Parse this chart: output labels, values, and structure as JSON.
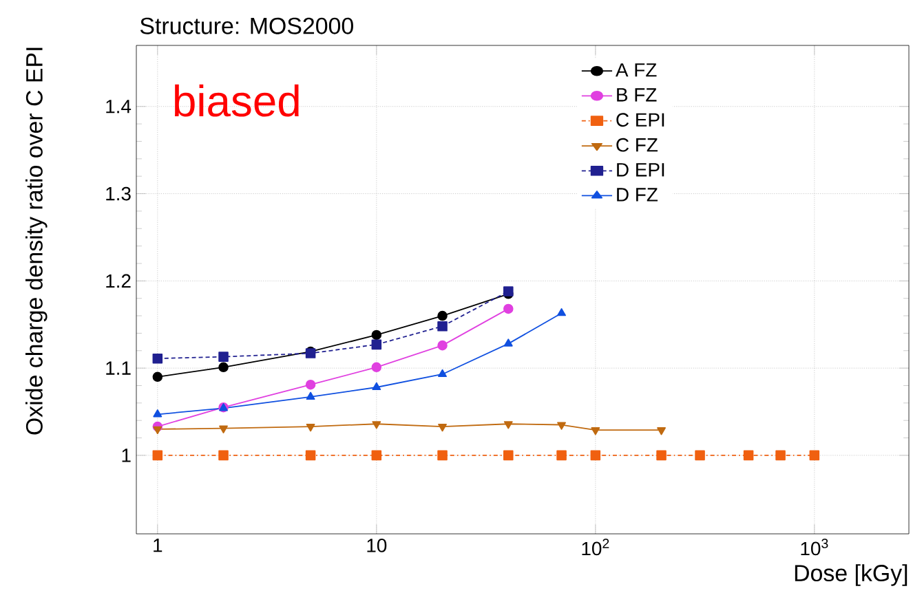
{
  "chart_data": {
    "type": "line",
    "title": "Structure: MOS2000",
    "xlabel": "Dose [kGy]",
    "ylabel": "Oxide charge density ratio over C EPI",
    "annotations": [
      "biased"
    ],
    "log": "x",
    "grid": true,
    "legend": "top right",
    "xlim": [
      0.8,
      2700
    ],
    "xticks": [
      1,
      10,
      {
        "value": 100,
        "label": "10$^{2}$"
      },
      {
        "value": 1000,
        "label": "10$^{3}$"
      }
    ],
    "ylim": [
      0.91,
      1.47
    ],
    "yticks": [
      1,
      1.1,
      1.2,
      1.3,
      1.4
    ],
    "series": [
      {
        "name": "A FZ",
        "color": "#000000",
        "marker": "circle",
        "line_style": "solid",
        "x": [
          1,
          2,
          5,
          10,
          20,
          40
        ],
        "values": [
          1.09,
          1.101,
          1.119,
          1.138,
          1.16,
          1.185
        ]
      },
      {
        "name": "B FZ",
        "color": "#e040e0",
        "marker": "circle",
        "line_style": "solid",
        "x": [
          1,
          2,
          5,
          10,
          20,
          40
        ],
        "values": [
          1.033,
          1.055,
          1.081,
          1.101,
          1.126,
          1.168
        ]
      },
      {
        "name": "C EPI",
        "color": "#f06010",
        "marker": "square",
        "line_style": "dashed",
        "x": [
          1,
          2,
          5,
          10,
          20,
          40,
          70,
          100,
          200,
          300,
          500,
          700,
          1000
        ],
        "values": [
          1,
          1,
          1,
          1,
          1,
          1,
          1,
          1,
          1,
          1,
          1,
          1,
          1
        ]
      },
      {
        "name": "C FZ",
        "color": "#c06a10",
        "marker": "triangle",
        "line_style": "solid",
        "x": [
          1,
          2,
          5,
          10,
          20,
          40,
          70,
          100,
          200
        ],
        "values": [
          1.03,
          1.031,
          1.033,
          1.036,
          1.033,
          1.036,
          1.035,
          1.029,
          1.029
        ]
      },
      {
        "name": "D EPI",
        "color": "#202090",
        "marker": "square",
        "line_style": "dotted",
        "x": [
          1,
          2,
          5,
          10,
          20,
          40
        ],
        "values": [
          1.111,
          1.113,
          1.117,
          1.127,
          1.148,
          1.188
        ]
      },
      {
        "name": "D FZ",
        "color": "#1050e0",
        "marker": "triangle",
        "line_style": "solid",
        "x": [
          1,
          2,
          5,
          10,
          20,
          40,
          70
        ],
        "values": [
          1.047,
          1.054,
          1.067,
          1.078,
          1.093,
          1.128,
          1.163
        ]
      }
    ]
  }
}
